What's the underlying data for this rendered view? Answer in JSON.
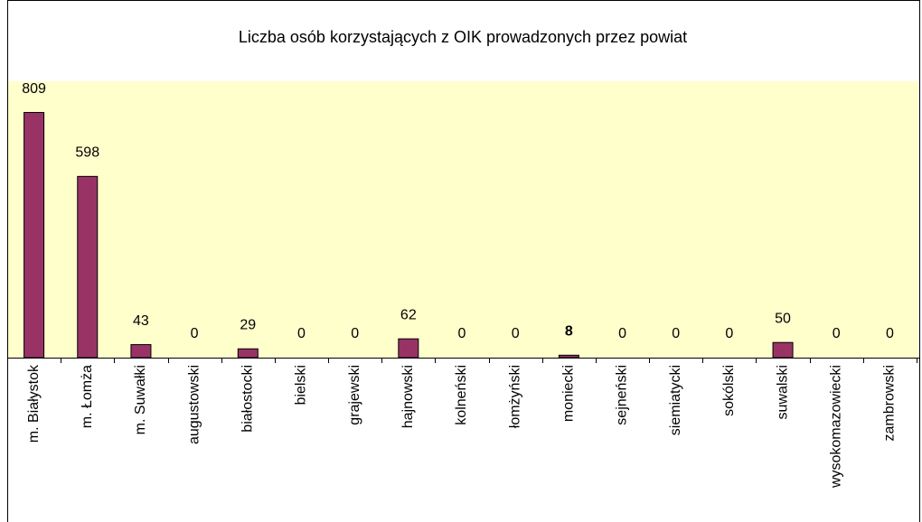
{
  "chart_data": {
    "type": "bar",
    "title": "Liczba osób korzystających z OIK prowadzonych przez powiat",
    "categories": [
      "m. Białystok",
      "m. Łomża",
      "m. Suwałki",
      "augustowski",
      "białostocki",
      "bielski",
      "grajewski",
      "hajnowski",
      "kolneński",
      "łomżyński",
      "moniecki",
      "sejneński",
      "siemiatycki",
      "sokólski",
      "suwalski",
      "wysokomazowiecki",
      "zambrowski"
    ],
    "values": [
      809,
      598,
      43,
      0,
      29,
      0,
      0,
      62,
      0,
      0,
      8,
      0,
      0,
      0,
      50,
      0,
      0
    ],
    "color": "#993366",
    "ylim": [
      0,
      900
    ]
  }
}
